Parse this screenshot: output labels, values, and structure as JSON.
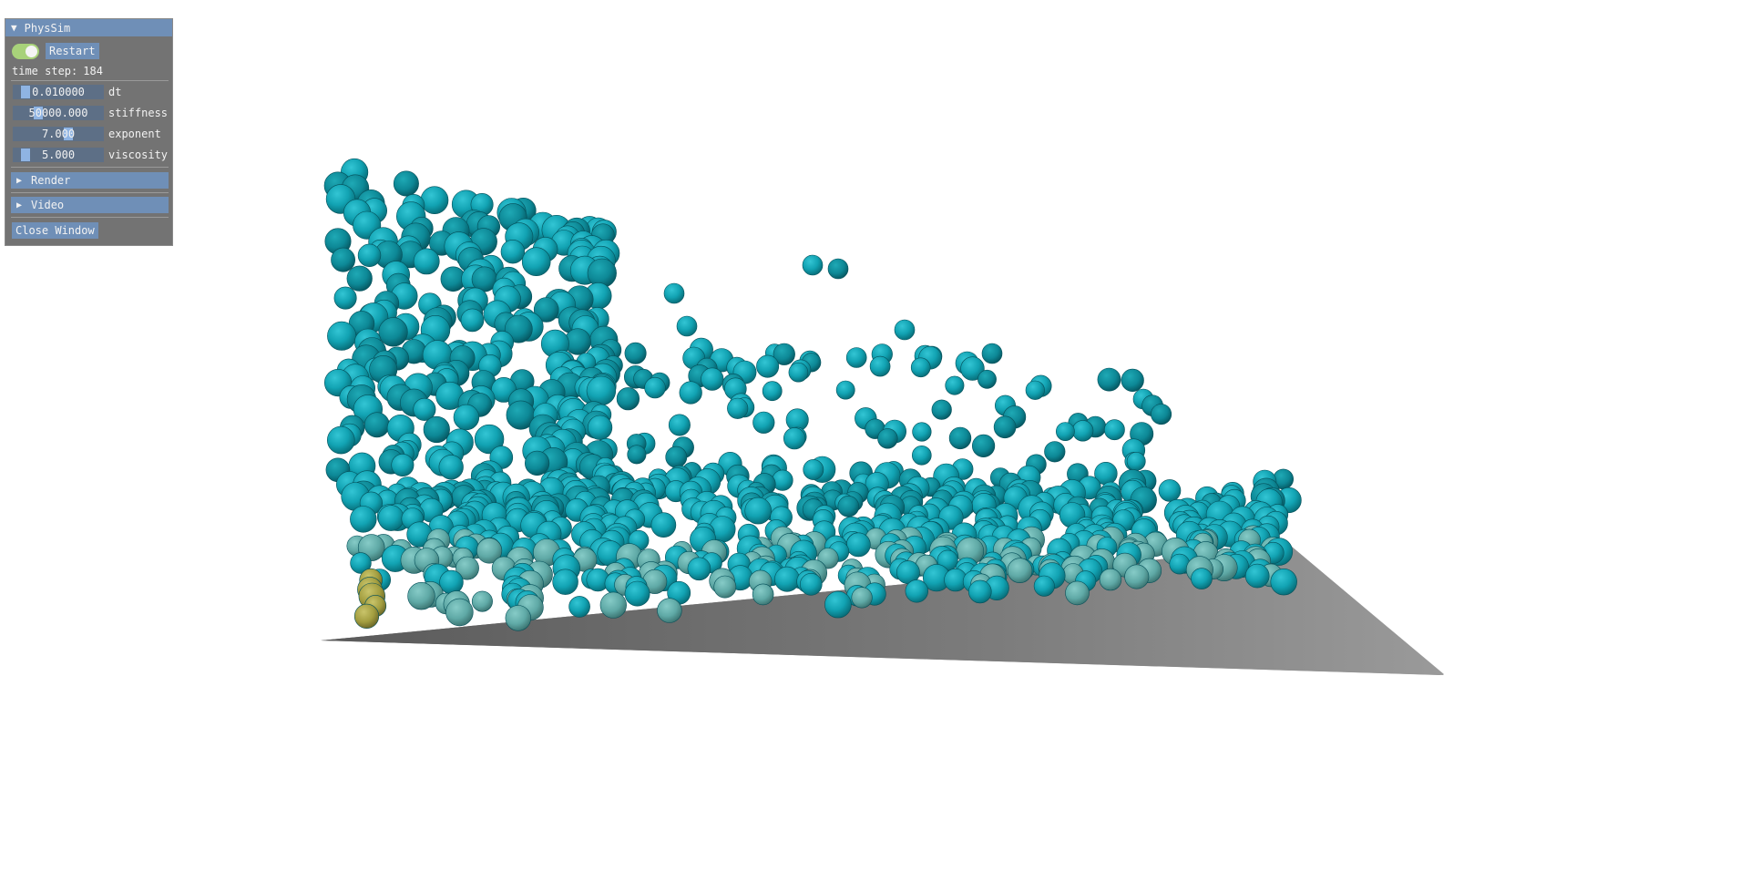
{
  "panel": {
    "title": "PhysSim",
    "running": true,
    "restart_label": "Restart",
    "time_step_label": "time step:",
    "time_step": "184",
    "sliders": [
      {
        "value_text": "0.010000",
        "label": "dt",
        "level": 0.1
      },
      {
        "value_text": "50000.000",
        "label": "stiffness",
        "level": 0.25
      },
      {
        "value_text": "7.000",
        "label": "exponent",
        "level": 0.62
      },
      {
        "value_text": "5.000",
        "label": "viscosity",
        "level": 0.1
      }
    ],
    "sections": [
      "Render",
      "Video"
    ],
    "close_label": "Close Window"
  },
  "scene": {
    "floor_color": "#8c8c8c",
    "particle_color": "#19a9b9",
    "particle_color_dense": "#5fb5b0",
    "particle_color_pressure": "#b8b44a"
  }
}
